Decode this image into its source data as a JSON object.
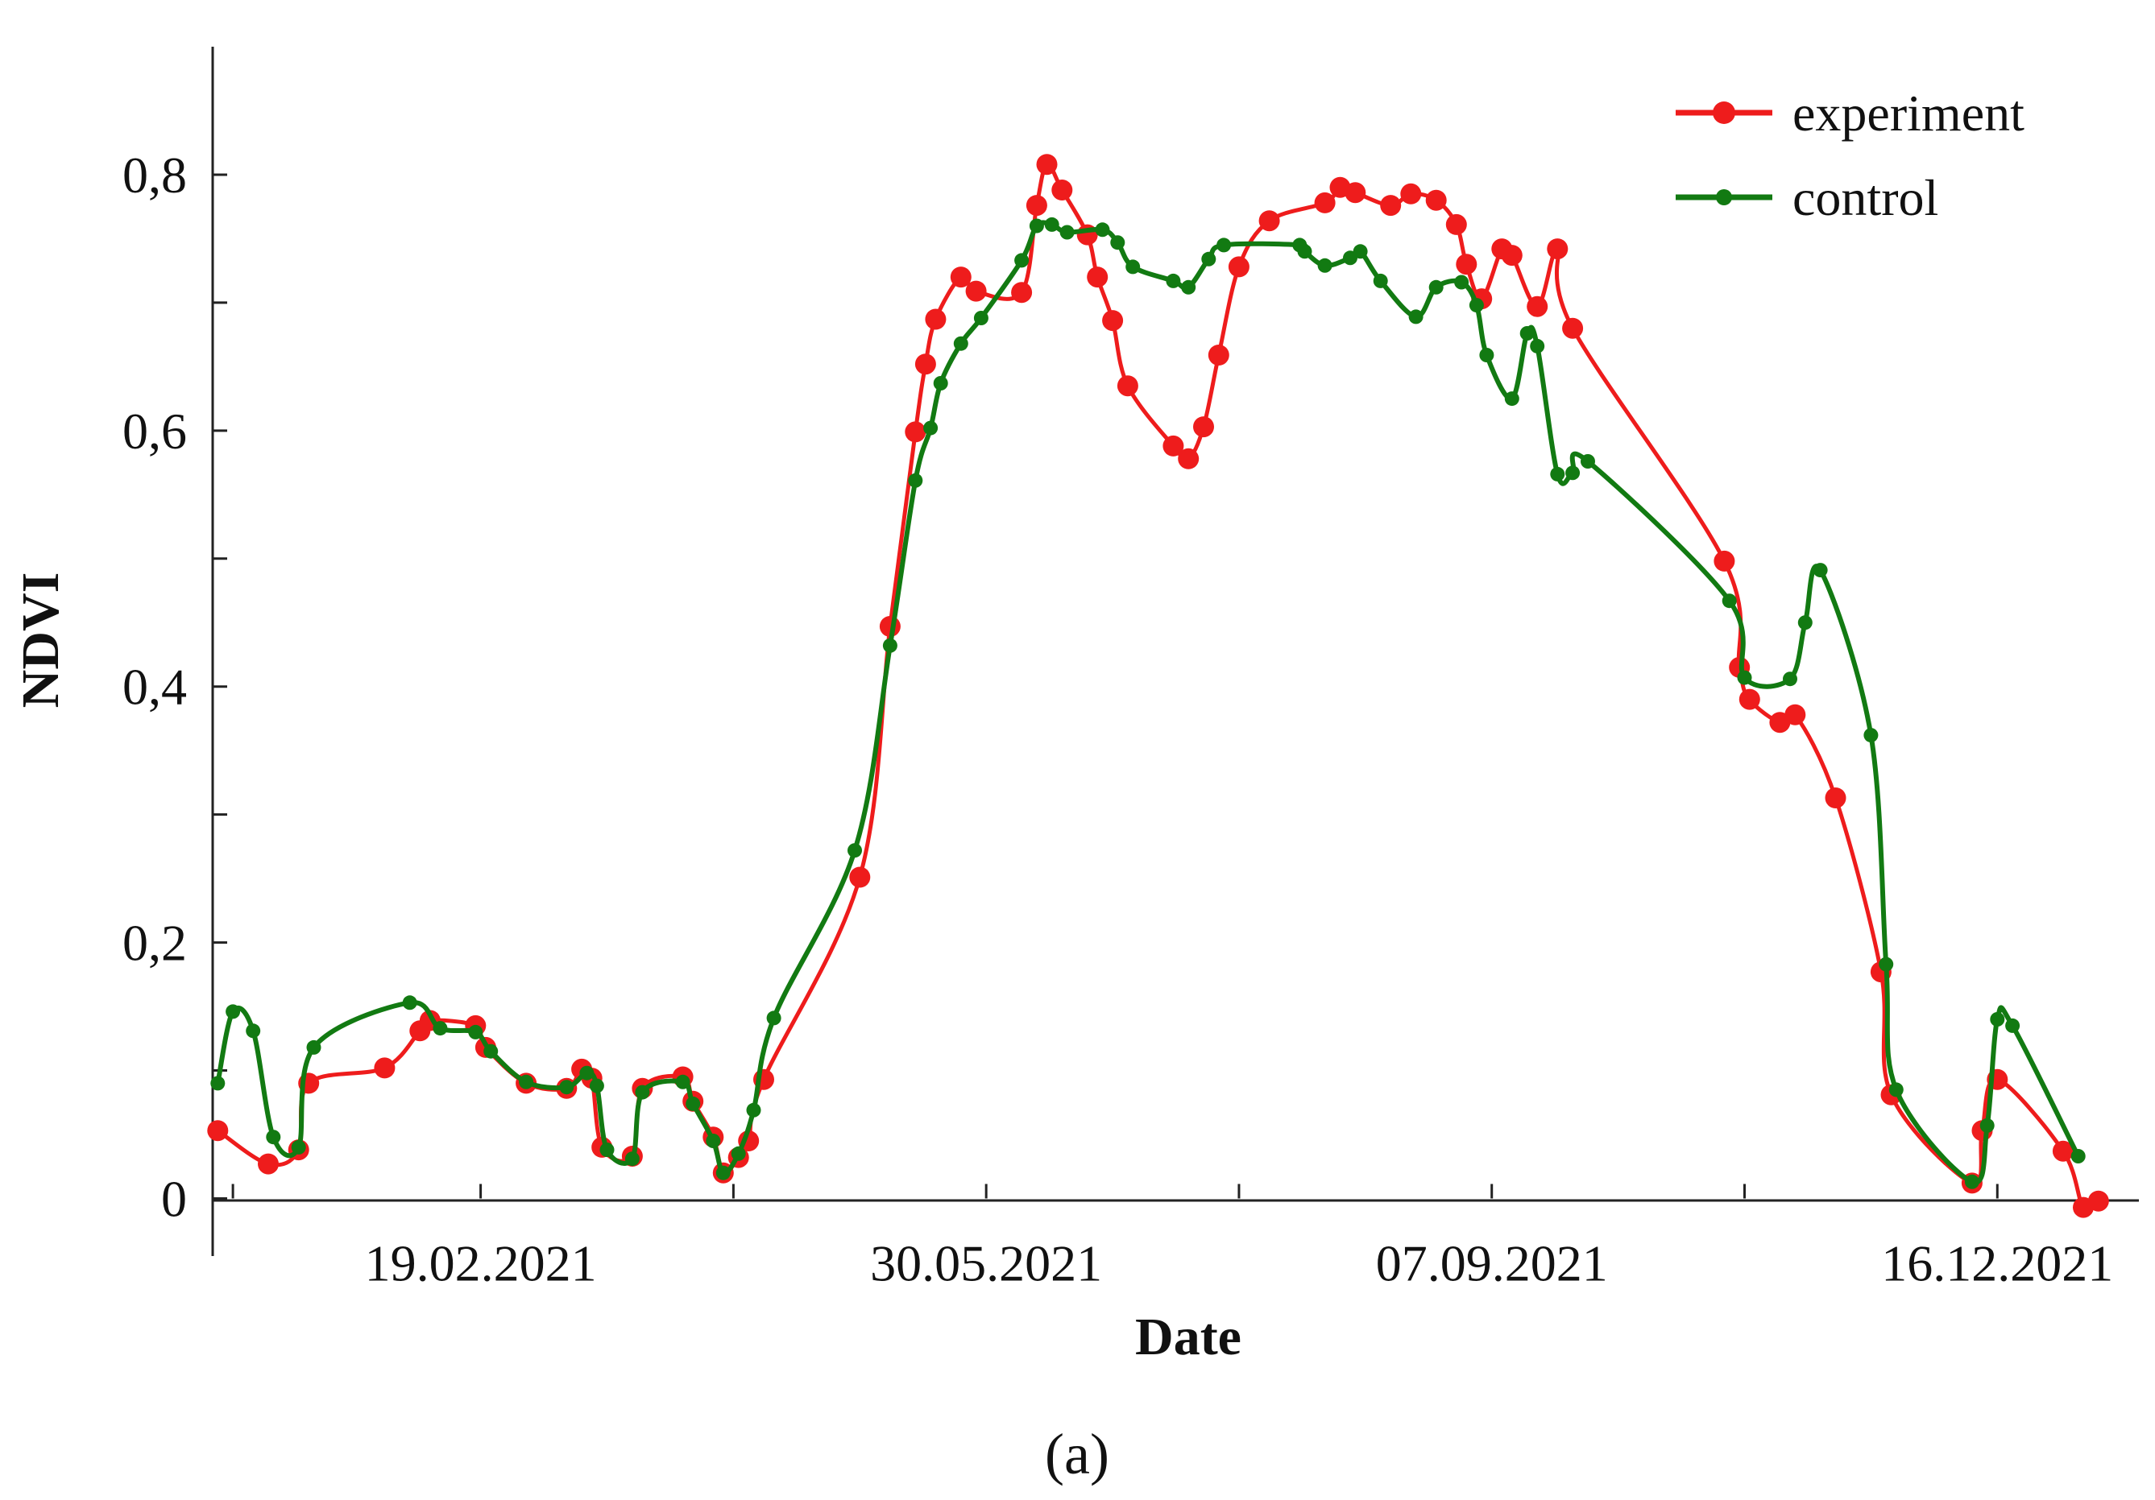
{
  "chart_data": {
    "type": "line",
    "xlabel": "Date",
    "ylabel": "NDVI",
    "caption": "(a)",
    "x_axis": {
      "type": "date",
      "range": [
        "2020-12-28",
        "2022-01-13"
      ],
      "ticks": [
        {
          "date": "2021-01-01",
          "label": ""
        },
        {
          "date": "2021-02-19",
          "label": "19.02.2021"
        },
        {
          "date": "2021-04-10",
          "label": ""
        },
        {
          "date": "2021-05-30",
          "label": "30.05.2021"
        },
        {
          "date": "2021-07-19",
          "label": ""
        },
        {
          "date": "2021-09-07",
          "label": "07.09.2021"
        },
        {
          "date": "2021-10-27",
          "label": ""
        },
        {
          "date": "2021-12-16",
          "label": "16.12.2021"
        }
      ]
    },
    "y_axis": {
      "range": [
        -0.045,
        0.9
      ],
      "ticks": [
        {
          "value": 0,
          "label": "0"
        },
        {
          "value": 0.1,
          "label": ""
        },
        {
          "value": 0.2,
          "label": "0,2"
        },
        {
          "value": 0.3,
          "label": ""
        },
        {
          "value": 0.4,
          "label": "0,4"
        },
        {
          "value": 0.5,
          "label": ""
        },
        {
          "value": 0.6,
          "label": "0,6"
        },
        {
          "value": 0.7,
          "label": ""
        },
        {
          "value": 0.8,
          "label": "0,8"
        }
      ]
    },
    "legend": {
      "position": "top-right"
    },
    "series": [
      {
        "name": "experiment",
        "color": "#ee1c1c",
        "marker": "large-dot",
        "points": [
          [
            "2020-12-29",
            0.053
          ],
          [
            "2021-01-08",
            0.027
          ],
          [
            "2021-01-14",
            0.038
          ],
          [
            "2021-01-16",
            0.09
          ],
          [
            "2021-01-31",
            0.102
          ],
          [
            "2021-02-07",
            0.131
          ],
          [
            "2021-02-09",
            0.139
          ],
          [
            "2021-02-18",
            0.135
          ],
          [
            "2021-02-20",
            0.118
          ],
          [
            "2021-02-28",
            0.09
          ],
          [
            "2021-03-08",
            0.086
          ],
          [
            "2021-03-11",
            0.101
          ],
          [
            "2021-03-13",
            0.094
          ],
          [
            "2021-03-15",
            0.04
          ],
          [
            "2021-03-21",
            0.033
          ],
          [
            "2021-03-23",
            0.086
          ],
          [
            "2021-03-31",
            0.095
          ],
          [
            "2021-04-02",
            0.076
          ],
          [
            "2021-04-06",
            0.048
          ],
          [
            "2021-04-08",
            0.02
          ],
          [
            "2021-04-11",
            0.032
          ],
          [
            "2021-04-13",
            0.045
          ],
          [
            "2021-04-16",
            0.093
          ],
          [
            "2021-05-05",
            0.251
          ],
          [
            "2021-05-11",
            0.447
          ],
          [
            "2021-05-16",
            0.599
          ],
          [
            "2021-05-18",
            0.652
          ],
          [
            "2021-05-20",
            0.687
          ],
          [
            "2021-05-25",
            0.72
          ],
          [
            "2021-05-28",
            0.709
          ],
          [
            "2021-06-06",
            0.708
          ],
          [
            "2021-06-09",
            0.776
          ],
          [
            "2021-06-11",
            0.808
          ],
          [
            "2021-06-14",
            0.788
          ],
          [
            "2021-06-19",
            0.753
          ],
          [
            "2021-06-21",
            0.72
          ],
          [
            "2021-06-24",
            0.686
          ],
          [
            "2021-06-27",
            0.635
          ],
          [
            "2021-07-06",
            0.588
          ],
          [
            "2021-07-09",
            0.578
          ],
          [
            "2021-07-12",
            0.603
          ],
          [
            "2021-07-15",
            0.659
          ],
          [
            "2021-07-19",
            0.728
          ],
          [
            "2021-07-25",
            0.764
          ],
          [
            "2021-08-05",
            0.778
          ],
          [
            "2021-08-08",
            0.79
          ],
          [
            "2021-08-11",
            0.786
          ],
          [
            "2021-08-18",
            0.776
          ],
          [
            "2021-08-22",
            0.785
          ],
          [
            "2021-08-27",
            0.78
          ],
          [
            "2021-08-31",
            0.761
          ],
          [
            "2021-09-02",
            0.73
          ],
          [
            "2021-09-05",
            0.703
          ],
          [
            "2021-09-09",
            0.742
          ],
          [
            "2021-09-11",
            0.737
          ],
          [
            "2021-09-16",
            0.697
          ],
          [
            "2021-09-20",
            0.742
          ],
          [
            "2021-09-23",
            0.68
          ],
          [
            "2021-10-23",
            0.498
          ],
          [
            "2021-10-26",
            0.415
          ],
          [
            "2021-10-28",
            0.39
          ],
          [
            "2021-11-03",
            0.372
          ],
          [
            "2021-11-06",
            0.378
          ],
          [
            "2021-11-14",
            0.313
          ],
          [
            "2021-11-23",
            0.177
          ],
          [
            "2021-11-25",
            0.081
          ],
          [
            "2021-12-11",
            0.012
          ],
          [
            "2021-12-13",
            0.053
          ],
          [
            "2021-12-16",
            0.093
          ],
          [
            "2021-12-29",
            0.037
          ],
          [
            "2022-01-02",
            -0.007
          ],
          [
            "2022-01-05",
            -0.002
          ]
        ]
      },
      {
        "name": "control",
        "color": "#127a12",
        "marker": "small-dot",
        "points": [
          [
            "2020-12-29",
            0.09
          ],
          [
            "2021-01-01",
            0.146
          ],
          [
            "2021-01-05",
            0.131
          ],
          [
            "2021-01-09",
            0.048
          ],
          [
            "2021-01-14",
            0.04
          ],
          [
            "2021-01-17",
            0.118
          ],
          [
            "2021-02-05",
            0.153
          ],
          [
            "2021-02-11",
            0.133
          ],
          [
            "2021-02-18",
            0.13
          ],
          [
            "2021-02-21",
            0.115
          ],
          [
            "2021-02-28",
            0.091
          ],
          [
            "2021-03-08",
            0.087
          ],
          [
            "2021-03-12",
            0.098
          ],
          [
            "2021-03-14",
            0.088
          ],
          [
            "2021-03-16",
            0.038
          ],
          [
            "2021-03-21",
            0.031
          ],
          [
            "2021-03-23",
            0.083
          ],
          [
            "2021-03-31",
            0.091
          ],
          [
            "2021-04-02",
            0.074
          ],
          [
            "2021-04-06",
            0.045
          ],
          [
            "2021-04-08",
            0.02
          ],
          [
            "2021-04-11",
            0.035
          ],
          [
            "2021-04-14",
            0.069
          ],
          [
            "2021-04-18",
            0.141
          ],
          [
            "2021-05-04",
            0.272
          ],
          [
            "2021-05-11",
            0.432
          ],
          [
            "2021-05-16",
            0.561
          ],
          [
            "2021-05-19",
            0.602
          ],
          [
            "2021-05-21",
            0.637
          ],
          [
            "2021-05-25",
            0.668
          ],
          [
            "2021-05-29",
            0.688
          ],
          [
            "2021-06-06",
            0.733
          ],
          [
            "2021-06-09",
            0.76
          ],
          [
            "2021-06-12",
            0.761
          ],
          [
            "2021-06-15",
            0.755
          ],
          [
            "2021-06-22",
            0.757
          ],
          [
            "2021-06-25",
            0.747
          ],
          [
            "2021-06-28",
            0.728
          ],
          [
            "2021-07-06",
            0.717
          ],
          [
            "2021-07-09",
            0.712
          ],
          [
            "2021-07-13",
            0.734
          ],
          [
            "2021-07-16",
            0.745
          ],
          [
            "2021-07-31",
            0.745
          ],
          [
            "2021-08-01",
            0.74
          ],
          [
            "2021-08-05",
            0.729
          ],
          [
            "2021-08-10",
            0.735
          ],
          [
            "2021-08-12",
            0.74
          ],
          [
            "2021-08-16",
            0.717
          ],
          [
            "2021-08-23",
            0.689
          ],
          [
            "2021-08-27",
            0.712
          ],
          [
            "2021-09-01",
            0.716
          ],
          [
            "2021-09-04",
            0.698
          ],
          [
            "2021-09-06",
            0.659
          ],
          [
            "2021-09-11",
            0.625
          ],
          [
            "2021-09-14",
            0.676
          ],
          [
            "2021-09-16",
            0.666
          ],
          [
            "2021-09-20",
            0.566
          ],
          [
            "2021-09-23",
            0.567
          ],
          [
            "2021-09-26",
            0.576
          ],
          [
            "2021-10-24",
            0.467
          ],
          [
            "2021-10-27",
            0.407
          ],
          [
            "2021-11-05",
            0.406
          ],
          [
            "2021-11-08",
            0.45
          ],
          [
            "2021-11-11",
            0.491
          ],
          [
            "2021-11-21",
            0.362
          ],
          [
            "2021-11-24",
            0.183
          ],
          [
            "2021-11-26",
            0.085
          ],
          [
            "2021-12-11",
            0.013
          ],
          [
            "2021-12-14",
            0.057
          ],
          [
            "2021-12-16",
            0.14
          ],
          [
            "2021-12-19",
            0.135
          ],
          [
            "2022-01-01",
            0.033
          ]
        ]
      }
    ]
  }
}
